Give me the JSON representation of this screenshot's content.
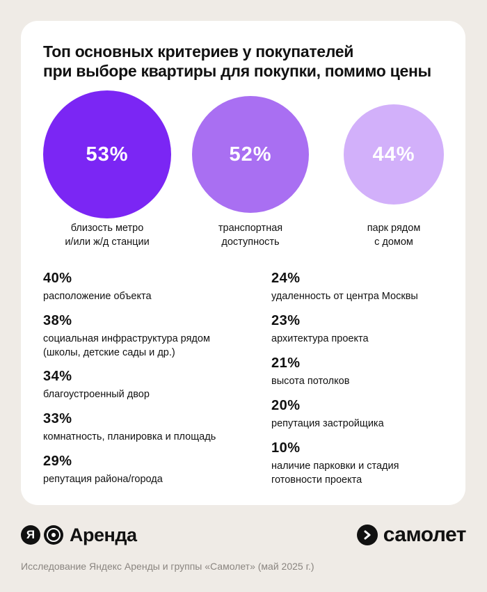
{
  "title": {
    "line1": "Топ основных критериев у покупателей",
    "line2": "при выборе квартиры для покупки, помимо цены"
  },
  "colors": {
    "top1": "#7b26f4",
    "top2": "#a96ff2",
    "top3": "#d2b0fa",
    "background": "#efebe6",
    "card": "#ffffff"
  },
  "chart_data": {
    "type": "bar",
    "title": "Топ основных критериев у покупателей при выборе квартиры для покупки, помимо цены",
    "unit": "%",
    "top": [
      {
        "value": 53,
        "value_label": "53%",
        "label_lines": [
          "близость метро",
          "и/или ж/д станции"
        ]
      },
      {
        "value": 52,
        "value_label": "52%",
        "label_lines": [
          "транспортная",
          "доступность"
        ]
      },
      {
        "value": 44,
        "value_label": "44%",
        "label_lines": [
          "парк рядом",
          "с домом"
        ]
      }
    ],
    "left": [
      {
        "value": 40,
        "value_label": "40%",
        "label_lines": [
          "расположение объекта"
        ]
      },
      {
        "value": 38,
        "value_label": "38%",
        "label_lines": [
          "социальная инфраструктура рядом",
          "(школы, детские сады и др.)"
        ]
      },
      {
        "value": 34,
        "value_label": "34%",
        "label_lines": [
          "благоустроенный двор"
        ]
      },
      {
        "value": 33,
        "value_label": "33%",
        "label_lines": [
          "комнатность, планировка и площадь"
        ]
      },
      {
        "value": 29,
        "value_label": "29%",
        "label_lines": [
          "репутация района/города"
        ]
      }
    ],
    "right": [
      {
        "value": 24,
        "value_label": "24%",
        "label_lines": [
          "удаленность от центра Москвы"
        ]
      },
      {
        "value": 23,
        "value_label": "23%",
        "label_lines": [
          "архитектура проекта"
        ]
      },
      {
        "value": 21,
        "value_label": "21%",
        "label_lines": [
          "высота потолков"
        ]
      },
      {
        "value": 20,
        "value_label": "20%",
        "label_lines": [
          "репутация застройщика"
        ]
      },
      {
        "value": 10,
        "value_label": "10%",
        "label_lines": [
          "наличие парковки и стадия",
          "готовности проекта"
        ]
      }
    ]
  },
  "logos": {
    "left_badge": "Я",
    "left_text": "Аренда",
    "left_icon": "yandex-logo-icon",
    "right_text": "самолет",
    "right_icon": "samolet-arrow-icon"
  },
  "footer": "Исследование Яндекс Аренды и группы «Самолет» (май 2025 г.)"
}
